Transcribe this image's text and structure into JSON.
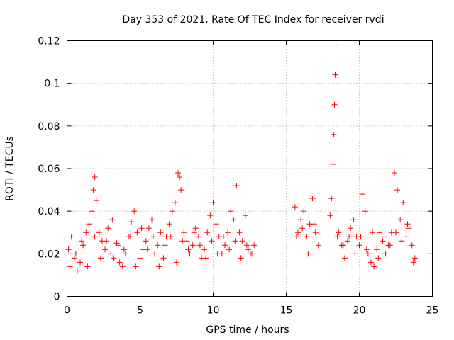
{
  "chart_data": {
    "type": "scatter",
    "title": "Day 353 of 2021, Rate Of TEC Index for receiver rvdi",
    "xlabel": "GPS time / hours",
    "ylabel": "ROTI / TECUs",
    "xlim": [
      0,
      25
    ],
    "ylim": [
      0,
      0.12
    ],
    "xticks": [
      "0",
      "5",
      "10",
      "15",
      "20",
      "25"
    ],
    "yticks": [
      "0",
      "0.02",
      "0.04",
      "0.06",
      "0.08",
      "0.1",
      "0.12"
    ],
    "grid": true,
    "marker": "plus",
    "series": [
      {
        "name": "ROTI",
        "color": "#ff0000",
        "x": [
          0.1,
          0.3,
          0.5,
          0.7,
          0.9,
          1.1,
          1.3,
          1.5,
          1.7,
          1.8,
          1.9,
          2.0,
          2.2,
          2.4,
          2.6,
          2.8,
          3.0,
          3.2,
          3.4,
          3.6,
          3.8,
          4.0,
          4.2,
          4.4,
          4.6,
          4.8,
          5.0,
          5.2,
          5.4,
          5.6,
          5.8,
          6.0,
          6.2,
          6.4,
          6.6,
          6.8,
          7.0,
          7.2,
          7.4,
          7.6,
          7.7,
          7.8,
          8.0,
          8.2,
          8.4,
          8.6,
          8.8,
          9.0,
          9.2,
          9.4,
          9.6,
          9.8,
          10.0,
          10.2,
          10.4,
          10.6,
          10.8,
          11.0,
          11.2,
          11.4,
          11.6,
          11.8,
          12.0,
          12.2,
          12.4,
          12.6,
          12.8,
          15.6,
          15.8,
          16.0,
          16.2,
          16.4,
          16.6,
          16.8,
          17.0,
          17.2,
          18.0,
          18.1,
          18.2,
          18.25,
          18.3,
          18.35,
          18.4,
          18.6,
          18.8,
          19.0,
          19.2,
          19.4,
          19.6,
          19.8,
          20.0,
          20.2,
          20.4,
          20.6,
          20.8,
          21.0,
          21.2,
          21.4,
          21.6,
          21.8,
          22.0,
          22.2,
          22.4,
          22.6,
          22.8,
          23.0,
          23.2,
          23.4,
          23.6,
          23.8,
          0.2,
          0.6,
          1.0,
          1.4,
          1.9,
          2.3,
          2.7,
          3.1,
          3.5,
          3.9,
          4.3,
          4.7,
          5.1,
          5.5,
          5.9,
          6.3,
          6.7,
          7.1,
          7.5,
          7.9,
          8.3,
          8.7,
          9.1,
          9.5,
          9.9,
          10.3,
          10.7,
          11.1,
          11.5,
          11.9,
          12.3,
          12.7,
          15.7,
          16.1,
          16.5,
          16.9,
          18.5,
          18.9,
          19.3,
          19.7,
          20.1,
          20.5,
          20.9,
          21.3,
          21.7,
          22.1,
          22.5,
          22.9,
          23.3,
          23.7
        ],
        "y": [
          0.022,
          0.028,
          0.018,
          0.012,
          0.016,
          0.024,
          0.03,
          0.034,
          0.04,
          0.05,
          0.056,
          0.045,
          0.03,
          0.026,
          0.022,
          0.032,
          0.02,
          0.018,
          0.025,
          0.016,
          0.014,
          0.02,
          0.028,
          0.035,
          0.04,
          0.03,
          0.018,
          0.022,
          0.026,
          0.032,
          0.036,
          0.02,
          0.024,
          0.03,
          0.018,
          0.028,
          0.034,
          0.04,
          0.044,
          0.058,
          0.056,
          0.05,
          0.03,
          0.026,
          0.02,
          0.024,
          0.032,
          0.028,
          0.018,
          0.022,
          0.03,
          0.038,
          0.044,
          0.034,
          0.028,
          0.02,
          0.024,
          0.03,
          0.04,
          0.036,
          0.052,
          0.03,
          0.026,
          0.038,
          0.022,
          0.02,
          0.024,
          0.042,
          0.03,
          0.036,
          0.04,
          0.028,
          0.034,
          0.046,
          0.03,
          0.024,
          0.038,
          0.046,
          0.062,
          0.076,
          0.09,
          0.104,
          0.118,
          0.03,
          0.024,
          0.018,
          0.026,
          0.032,
          0.036,
          0.028,
          0.024,
          0.048,
          0.04,
          0.02,
          0.016,
          0.014,
          0.022,
          0.03,
          0.026,
          0.02,
          0.024,
          0.03,
          0.058,
          0.05,
          0.036,
          0.044,
          0.028,
          0.032,
          0.024,
          0.018,
          0.014,
          0.02,
          0.026,
          0.014,
          0.028,
          0.018,
          0.026,
          0.036,
          0.024,
          0.022,
          0.028,
          0.014,
          0.032,
          0.022,
          0.028,
          0.014,
          0.024,
          0.028,
          0.016,
          0.026,
          0.022,
          0.03,
          0.024,
          0.018,
          0.026,
          0.02,
          0.028,
          0.022,
          0.026,
          0.018,
          0.024,
          0.02,
          0.028,
          0.032,
          0.02,
          0.034,
          0.028,
          0.024,
          0.028,
          0.02,
          0.028,
          0.022,
          0.03,
          0.018,
          0.028,
          0.024,
          0.03,
          0.026,
          0.034,
          0.016
        ]
      }
    ]
  }
}
